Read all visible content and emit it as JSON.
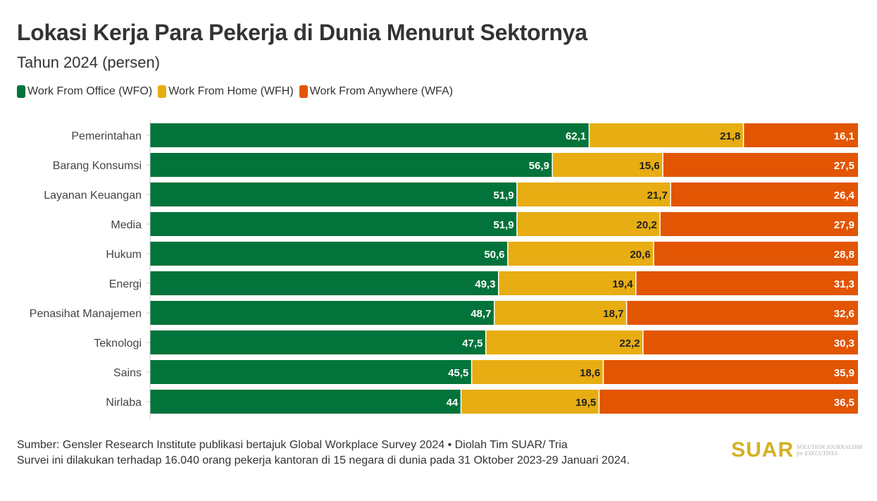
{
  "chart_data": {
    "type": "bar",
    "stacked": true,
    "orientation": "horizontal",
    "title": "Lokasi Kerja Para Pekerja di Dunia Menurut Sektornya",
    "subtitle": "Tahun 2024 (persen)",
    "xlabel": "",
    "ylabel": "",
    "xlim": [
      0,
      100
    ],
    "legend_position": "top-left",
    "categories": [
      "Pemerintahan",
      "Barang Konsumsi",
      "Layanan Keuangan",
      "Media",
      "Hukum",
      "Energi",
      "Penasihat Manajemen",
      "Teknologi",
      "Sains",
      "Nirlaba"
    ],
    "series": [
      {
        "name": "Work From Office (WFO)",
        "color": "#02733a",
        "label_color": "#ffffff",
        "values": [
          62.1,
          56.9,
          51.9,
          51.9,
          50.6,
          49.3,
          48.7,
          47.5,
          45.5,
          44
        ]
      },
      {
        "name": "Work From Home (WFH)",
        "color": "#e7ad12",
        "label_color": "#222222",
        "values": [
          21.8,
          15.6,
          21.7,
          20.2,
          20.6,
          19.4,
          18.7,
          22.2,
          18.6,
          19.5
        ]
      },
      {
        "name": "Work From Anywhere (WFA)",
        "color": "#e25502",
        "label_color": "#ffffff",
        "values": [
          16.1,
          27.5,
          26.4,
          27.9,
          28.8,
          31.3,
          32.6,
          30.3,
          35.9,
          36.5
        ]
      }
    ]
  },
  "footer": {
    "source": "Sumber: Gensler Research Institute publikasi bertajuk Global Workplace Survey 2024 • Diolah Tim SUAR/ Tria",
    "note": "Survei ini dilakukan terhadap 16.040 orang pekerja kantoran di 15 negara di dunia pada 31 Oktober 2023-29 Januari 2024."
  },
  "logo": {
    "mark": "SUAR",
    "tagline1": "SOLUTION JOURNALISM",
    "tagline2": "for EXECUTIVES"
  }
}
